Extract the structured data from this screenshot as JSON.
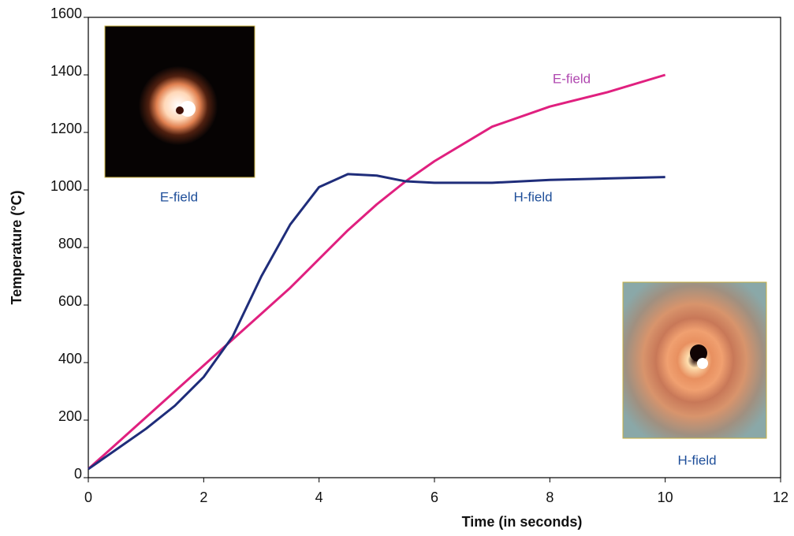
{
  "chart_data": {
    "type": "line",
    "x_label": "Time (in seconds)",
    "y_label": "Temperature (°C)",
    "x": [
      0,
      0.5,
      1,
      1.5,
      2,
      2.5,
      3,
      3.5,
      4,
      4.5,
      5,
      5.5,
      6,
      7,
      8,
      9,
      10
    ],
    "series": [
      {
        "name": "E-field",
        "color": "#e0207f",
        "label_color": "#b048b0",
        "values": [
          30,
          120,
          210,
          300,
          390,
          480,
          570,
          660,
          760,
          860,
          950,
          1030,
          1100,
          1220,
          1290,
          1340,
          1400
        ]
      },
      {
        "name": "H-field",
        "color": "#1f2d7a",
        "label_color": "#1f4f9a",
        "values": [
          30,
          100,
          170,
          250,
          350,
          490,
          700,
          880,
          1010,
          1055,
          1050,
          1030,
          1025,
          1025,
          1035,
          1040,
          1045
        ]
      }
    ],
    "annotations": [
      "E-field",
      "H-field"
    ],
    "xlim": [
      0,
      12
    ],
    "xticks": [
      0,
      2,
      4,
      6,
      8,
      10,
      12
    ],
    "ylim": [
      0,
      1600
    ],
    "yticks": [
      0,
      200,
      400,
      600,
      800,
      1000,
      1200,
      1400,
      1600
    ],
    "grid": false
  }
}
